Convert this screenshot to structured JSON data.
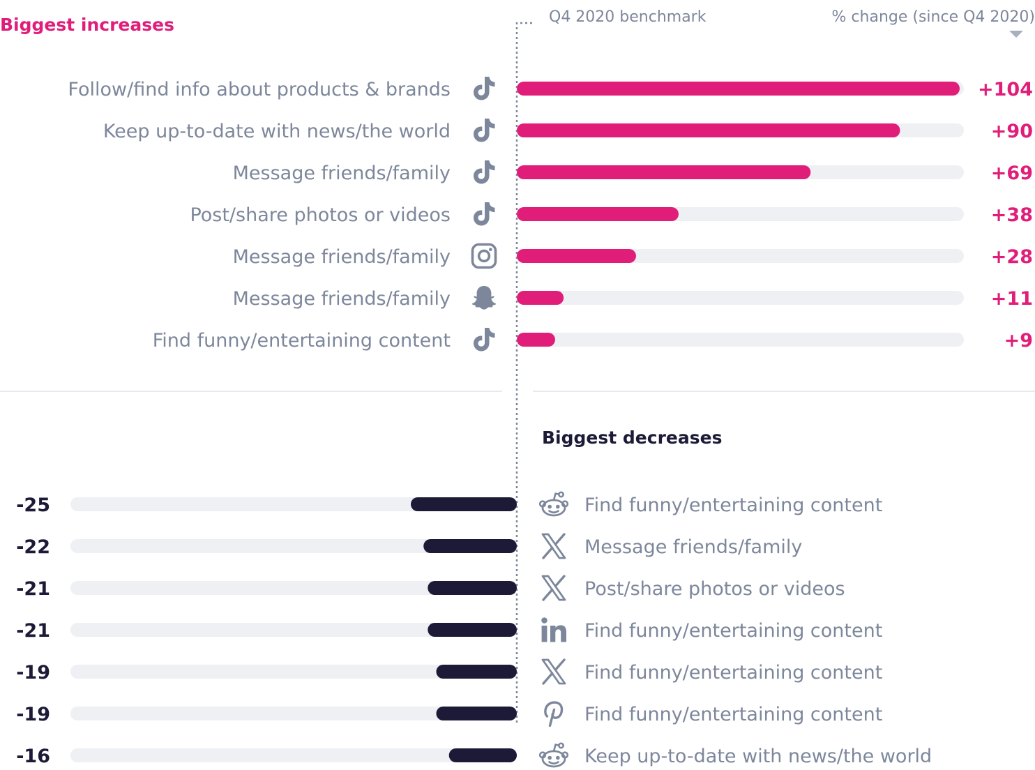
{
  "colors": {
    "increase": "#e11d7a",
    "decrease": "#1c1a36",
    "track": "#eef0f4",
    "label": "#7d879b",
    "icon": "#7d879b",
    "benchmark": "#7d879b",
    "divider": "#e6e9ef"
  },
  "chart_data": {
    "type": "bar",
    "title_increases": "Biggest increases",
    "title_decreases": "Biggest decreases",
    "benchmark_label": "Q4 2020 benchmark",
    "value_header": "% change (since Q4 2020)",
    "unit": "% change since Q4 2020",
    "xlim": [
      -25,
      104
    ],
    "increases": [
      {
        "label": "Follow/find info about products & brands",
        "platform": "tiktok-icon",
        "value": 104,
        "display": "+104"
      },
      {
        "label": "Keep up-to-date with news/the world",
        "platform": "tiktok-icon",
        "value": 90,
        "display": "+90"
      },
      {
        "label": "Message friends/family",
        "platform": "tiktok-icon",
        "value": 69,
        "display": "+69"
      },
      {
        "label": "Post/share photos or videos",
        "platform": "tiktok-icon",
        "value": 38,
        "display": "+38"
      },
      {
        "label": "Message friends/family",
        "platform": "instagram-icon",
        "value": 28,
        "display": "+28"
      },
      {
        "label": "Message friends/family",
        "platform": "snapchat-icon",
        "value": 11,
        "display": "+11"
      },
      {
        "label": "Find funny/entertaining content",
        "platform": "tiktok-icon",
        "value": 9,
        "display": "+9"
      }
    ],
    "decreases": [
      {
        "label": "Find funny/entertaining content",
        "platform": "reddit-icon",
        "value": -25,
        "display": "-25"
      },
      {
        "label": "Message friends/family",
        "platform": "x-icon",
        "value": -22,
        "display": "-22"
      },
      {
        "label": "Post/share photos or videos",
        "platform": "x-icon",
        "value": -21,
        "display": "-21"
      },
      {
        "label": "Find funny/entertaining content",
        "platform": "linkedin-icon",
        "value": -21,
        "display": "-21"
      },
      {
        "label": "Find funny/entertaining content",
        "platform": "x-icon",
        "value": -19,
        "display": "-19"
      },
      {
        "label": "Find funny/entertaining content",
        "platform": "pinterest-icon",
        "value": -19,
        "display": "-19"
      },
      {
        "label": "Keep up-to-date with news/the world",
        "platform": "reddit-icon",
        "value": -16,
        "display": "-16"
      }
    ]
  }
}
